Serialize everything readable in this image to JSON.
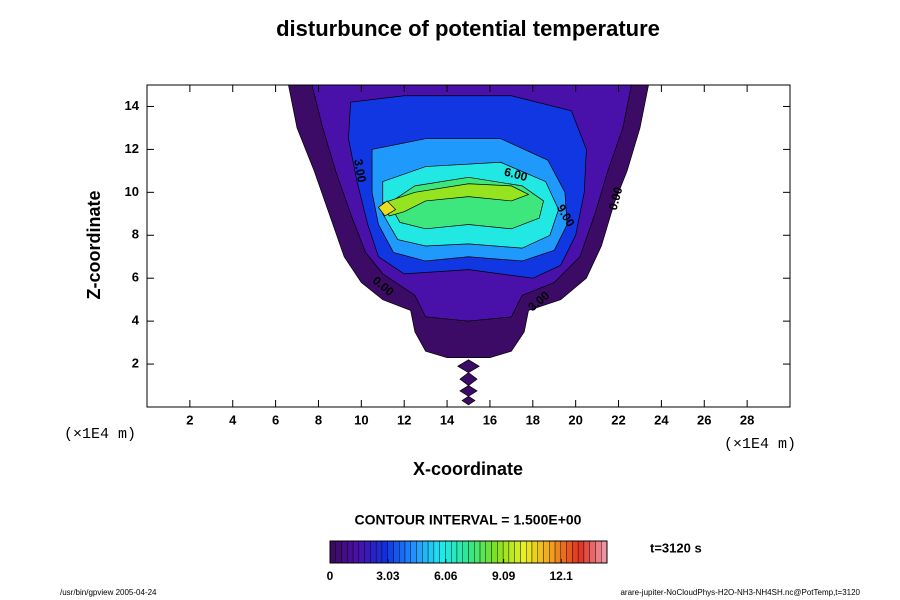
{
  "chart_data": {
    "type": "contour",
    "title": "disturbunce of potential temperature",
    "xlabel": "X-coordinate",
    "ylabel": "Z-coordinate",
    "unit_label": "(×1E4 m)",
    "xlim": [
      0,
      30
    ],
    "ylim": [
      0,
      15
    ],
    "xticks": [
      2,
      4,
      6,
      8,
      10,
      12,
      14,
      16,
      18,
      20,
      22,
      24,
      26,
      28
    ],
    "yticks": [
      2,
      4,
      6,
      8,
      10,
      12,
      14
    ],
    "contour_interval_text": "CONTOUR INTERVAL = 1.500E+00",
    "time_text": "t=3120 s",
    "footer_left": "/usr/bin/gpview 2005-04-24",
    "footer_right": "arare-jupiter-NoCloudPhys-H2O-NH3-NH4SH.nc@PotTemp,t=3120",
    "colormap": [
      "#3a0a5a",
      "#4b0fa8",
      "#1030e0",
      "#2090ff",
      "#20e8f0",
      "#30e890",
      "#80e020",
      "#e8f020",
      "#f0a020",
      "#e03020",
      "#f0a0b0"
    ],
    "clim": [
      0,
      14.5
    ],
    "cticks": [
      0,
      3.03,
      6.06,
      9.09,
      12.1
    ],
    "contours": [
      {
        "level": 0.2,
        "x": [
          6.6,
          7,
          7.8,
          8.5,
          9.2,
          10,
          11,
          12.3,
          12.5,
          13,
          14,
          16,
          17,
          17.6,
          17.8,
          19.3,
          20.5,
          21.2,
          21.8,
          22.4,
          23,
          23.4
        ],
        "z": [
          15,
          13,
          11,
          9,
          7,
          5.8,
          5,
          4.5,
          3.5,
          2.6,
          2.3,
          2.3,
          2.6,
          3.5,
          4.5,
          5,
          6,
          7.5,
          9.5,
          11,
          13,
          15
        ]
      },
      {
        "level": 0.2,
        "x": [
          14.5,
          15,
          15.5,
          15
        ],
        "z": [
          1.9,
          2.2,
          1.9,
          1.6
        ]
      },
      {
        "level": 0.2,
        "x": [
          14.6,
          15,
          15.4,
          15
        ],
        "z": [
          1.3,
          1.6,
          1.3,
          1.0
        ]
      },
      {
        "level": 0.2,
        "x": [
          14.6,
          15,
          15.4,
          15
        ],
        "z": [
          0.75,
          1.0,
          0.75,
          0.5
        ]
      },
      {
        "level": 0.2,
        "x": [
          14.7,
          15,
          15.3,
          15
        ],
        "z": [
          0.3,
          0.5,
          0.3,
          0.1
        ]
      },
      {
        "level": 1.5,
        "x": [
          7.7,
          8.2,
          8.8,
          9.5,
          10.2,
          11,
          12.5,
          13,
          15,
          17,
          17.5,
          19,
          20.2,
          20.9,
          21.5,
          22.2,
          22.6
        ],
        "z": [
          15,
          13,
          11,
          9,
          7.2,
          6.2,
          5.2,
          4.2,
          4,
          4.2,
          5.2,
          5.8,
          7,
          9,
          11,
          13,
          15
        ]
      },
      {
        "level": 3,
        "x": [
          9.5,
          9.4,
          9.8,
          10.3,
          10.8,
          12,
          15,
          18,
          19.3,
          20,
          20.4,
          20.5,
          19.8,
          17,
          12
        ],
        "z": [
          14.2,
          12.5,
          10.5,
          8.5,
          7,
          6.2,
          6.4,
          6,
          6.6,
          8,
          10,
          12,
          13.8,
          14.5,
          14.5
        ]
      },
      {
        "level": 4.5,
        "x": [
          10.5,
          10.5,
          10.8,
          11.5,
          13,
          15,
          17.5,
          19,
          19.6,
          19.5,
          18.7,
          16.5,
          13
        ],
        "z": [
          12,
          10,
          8.5,
          7.2,
          6.8,
          7,
          6.8,
          7.3,
          8.5,
          10,
          11.5,
          12.5,
          12.5
        ]
      },
      {
        "level": 6,
        "x": [
          11,
          11,
          11.7,
          13,
          15,
          17.5,
          18.8,
          19.2,
          18.6,
          16.5,
          13
        ],
        "z": [
          10.5,
          9,
          7.8,
          7.5,
          7.6,
          7.4,
          8,
          9.2,
          10.5,
          11.4,
          11.2
        ]
      },
      {
        "level": 7.5,
        "x": [
          11.3,
          11.8,
          13,
          15,
          17,
          18.3,
          18.5,
          17.5,
          15,
          12.5
        ],
        "z": [
          9.5,
          8.6,
          8.3,
          8.5,
          8.3,
          8.8,
          9.6,
          10.3,
          10.7,
          10.3
        ]
      },
      {
        "level": 9,
        "x": [
          11,
          11.3,
          12,
          13,
          15,
          17,
          17.8,
          17,
          15,
          12.5
        ],
        "z": [
          9.5,
          8.9,
          9.1,
          9.6,
          9.8,
          9.6,
          9.9,
          10.3,
          10.4,
          10
        ]
      },
      {
        "level": 10.5,
        "x": [
          10.8,
          11.1,
          11.6,
          11.2
        ],
        "z": [
          9.3,
          8.9,
          9.2,
          9.6
        ]
      }
    ],
    "contour_labels": [
      {
        "text": "3.00",
        "x": 9.9,
        "z": 11,
        "angle": 80
      },
      {
        "text": "6.00",
        "x": 17.2,
        "z": 10.8,
        "angle": 15
      },
      {
        "text": "9.00",
        "x": 19.5,
        "z": 8.9,
        "angle": 60
      },
      {
        "text": "0.00",
        "x": 21.9,
        "z": 9.7,
        "angle": -75
      },
      {
        "text": "0.00",
        "x": 11,
        "z": 5.6,
        "angle": 40
      },
      {
        "text": "3.00",
        "x": 18.3,
        "z": 4.9,
        "angle": -40
      }
    ]
  }
}
